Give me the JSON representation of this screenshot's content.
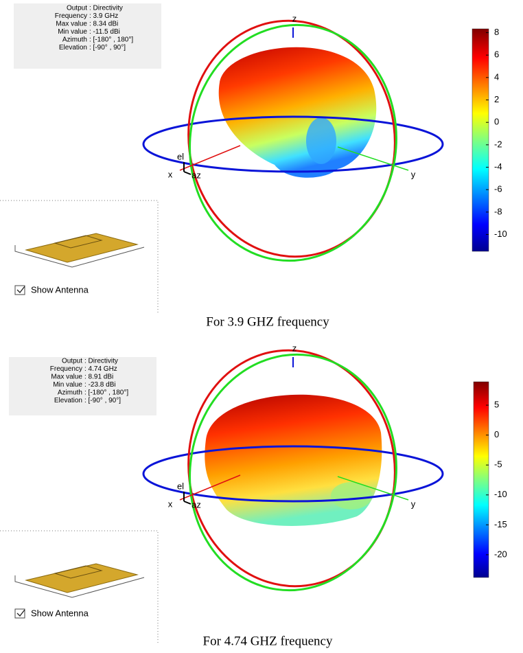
{
  "panels": [
    {
      "info": [
        {
          "label": "Output",
          "value": ": Directivity"
        },
        {
          "label": "Frequency",
          "value": ": 3.9 GHz"
        },
        {
          "label": "Max value",
          "value": ": 8.34 dBi"
        },
        {
          "label": "Min value",
          "value": ": -11.5 dBi"
        },
        {
          "label": "Azimuth",
          "value": ": [-180° , 180°]"
        },
        {
          "label": "Elevation",
          "value": ": [-90° , 90°]"
        }
      ],
      "axes": {
        "z": "z",
        "x": "x",
        "y": "y",
        "el": "el",
        "az": "az"
      },
      "colorbar": {
        "range": [
          -11.5,
          8.34
        ],
        "ticks": [
          8,
          6,
          4,
          2,
          0,
          -2,
          -4,
          -6,
          -8,
          -10
        ]
      },
      "checkbox": "Show Antenna",
      "caption": "For 3.9 GHZ frequency"
    },
    {
      "info": [
        {
          "label": "Output",
          "value": ": Directivity"
        },
        {
          "label": "Frequency",
          "value": ": 4.74 GHz"
        },
        {
          "label": "Max value",
          "value": ": 8.91 dBi"
        },
        {
          "label": "Min value",
          "value": ": -23.8 dBi"
        },
        {
          "label": "Azimuth",
          "value": ": [-180° , 180°]"
        },
        {
          "label": "Elevation",
          "value": ": [-90° , 90°]"
        }
      ],
      "axes": {
        "z": "z",
        "x": "x",
        "y": "y",
        "el": "el",
        "az": "az"
      },
      "colorbar": {
        "range": [
          -23.8,
          8.91
        ],
        "ticks": [
          5,
          0,
          -5,
          -10,
          -15,
          -20
        ]
      },
      "checkbox": "Show Antenna",
      "caption": "For 4.74 GHZ frequency"
    }
  ]
}
